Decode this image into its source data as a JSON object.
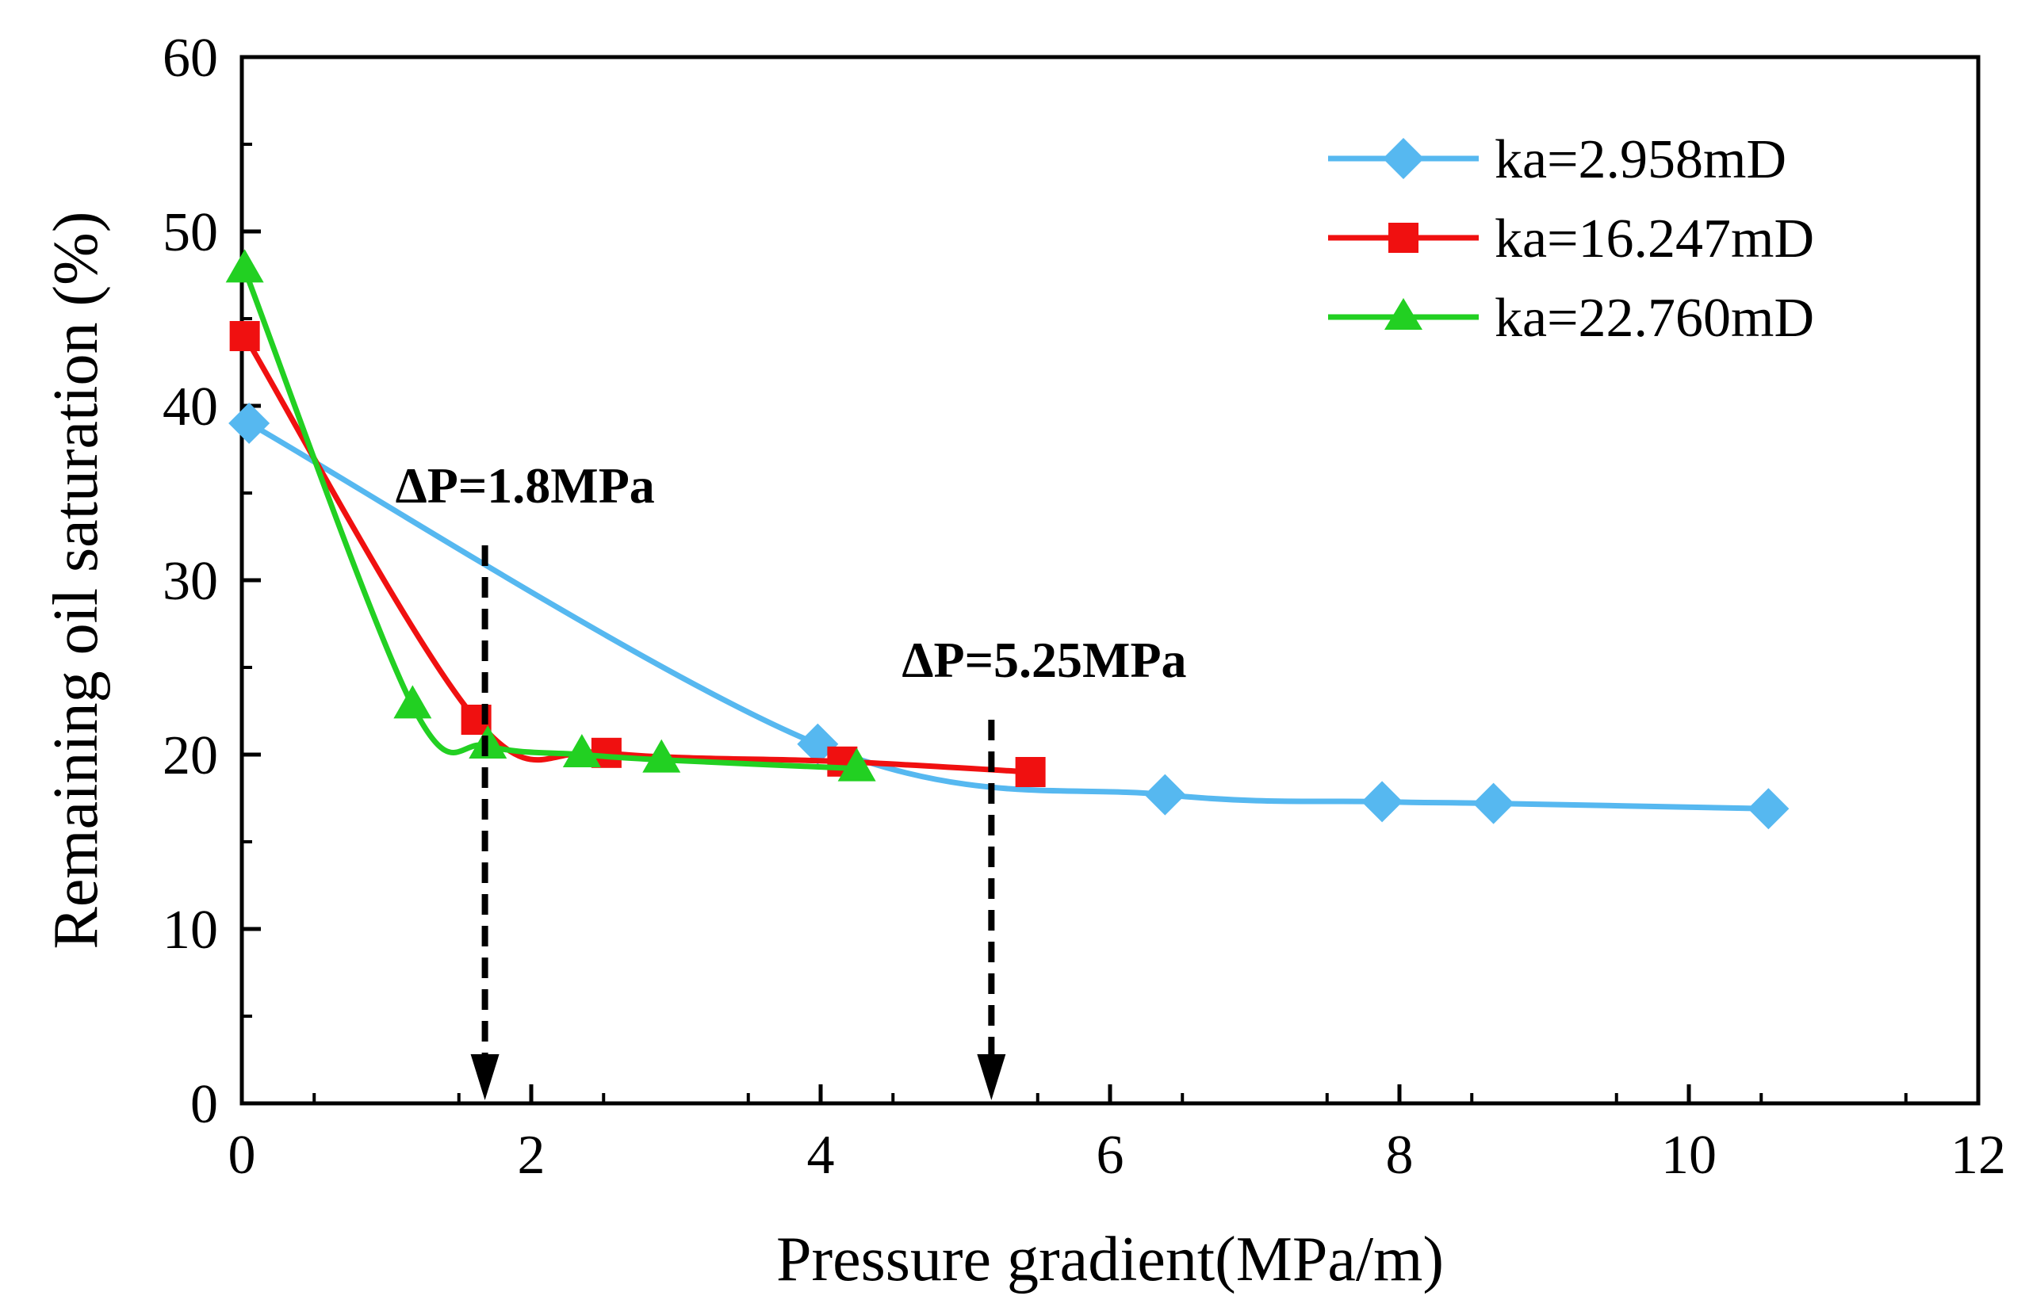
{
  "chart_data": {
    "type": "line",
    "title": "",
    "xlabel": "Pressure gradient(MPa/m)",
    "ylabel": "Remaining oil saturation (%)",
    "xlim": [
      0,
      12
    ],
    "ylim": [
      0,
      60
    ],
    "xticks": [
      0,
      2,
      4,
      6,
      8,
      10,
      12
    ],
    "yticks": [
      0,
      10,
      20,
      30,
      40,
      50,
      60
    ],
    "grid": false,
    "legend_position": "top-right",
    "series": [
      {
        "name": "ka=2.958mD",
        "color": "#56B8F0",
        "marker": "diamond",
        "x": [
          0.05,
          3.98,
          6.38,
          7.88,
          8.65,
          10.55
        ],
        "y": [
          39.0,
          20.6,
          17.7,
          17.3,
          17.2,
          16.9
        ]
      },
      {
        "name": "ka=16.247mD",
        "color": "#F01010",
        "marker": "square",
        "x": [
          0.02,
          1.62,
          2.52,
          4.15,
          5.45
        ],
        "y": [
          44.0,
          22.0,
          20.1,
          19.6,
          19.0
        ]
      },
      {
        "name": "ka=22.760mD",
        "color": "#22D022",
        "marker": "triangle",
        "x": [
          0.02,
          1.18,
          1.7,
          2.35,
          2.9,
          4.25
        ],
        "y": [
          47.8,
          22.8,
          20.5,
          20.0,
          19.7,
          19.2
        ]
      }
    ],
    "annotations": [
      {
        "text": "ΔP=1.8MPa",
        "x": 1.68,
        "arrow_from_y": 32,
        "arrow_to_y": 0
      },
      {
        "text": "ΔP=5.25MPa",
        "x": 5.18,
        "arrow_from_y": 22,
        "arrow_to_y": 0
      }
    ]
  }
}
